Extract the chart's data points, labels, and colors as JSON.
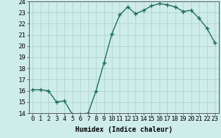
{
  "x": [
    0,
    1,
    2,
    3,
    4,
    5,
    6,
    7,
    8,
    9,
    10,
    11,
    12,
    13,
    14,
    15,
    16,
    17,
    18,
    19,
    20,
    21,
    22,
    23
  ],
  "y": [
    16.1,
    16.1,
    16.0,
    15.0,
    15.1,
    13.9,
    13.9,
    14.0,
    16.0,
    18.5,
    21.1,
    22.8,
    23.5,
    22.9,
    23.2,
    23.6,
    23.8,
    23.7,
    23.5,
    23.1,
    23.2,
    22.5,
    21.6,
    20.3
  ],
  "line_color": "#1a6b5a",
  "marker_color": "#1a6b5a",
  "bg_color": "#ceecea",
  "grid_color": "#aed4d0",
  "xlabel": "Humidex (Indice chaleur)",
  "ylim": [
    14,
    24
  ],
  "xlim_min": -0.5,
  "xlim_max": 23.5,
  "yticks": [
    14,
    15,
    16,
    17,
    18,
    19,
    20,
    21,
    22,
    23,
    24
  ],
  "xticks": [
    0,
    1,
    2,
    3,
    4,
    5,
    6,
    7,
    8,
    9,
    10,
    11,
    12,
    13,
    14,
    15,
    16,
    17,
    18,
    19,
    20,
    21,
    22,
    23
  ],
  "xtick_labels": [
    "0",
    "1",
    "2",
    "3",
    "4",
    "5",
    "6",
    "7",
    "8",
    "9",
    "10",
    "11",
    "12",
    "13",
    "14",
    "15",
    "16",
    "17",
    "18",
    "19",
    "20",
    "21",
    "22",
    "23"
  ],
  "xlabel_fontsize": 7,
  "tick_fontsize": 6.5,
  "line_width": 1.0,
  "marker_size": 2.5
}
